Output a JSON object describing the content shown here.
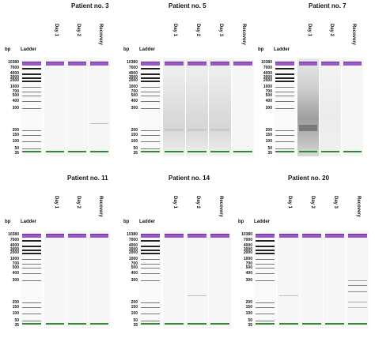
{
  "axis_label": "bp",
  "ladder_label": "Ladder",
  "ladder_sizes": [
    "10380",
    "7000",
    "4000",
    "3000",
    "2000",
    "1000",
    "700",
    "500",
    "400",
    "300",
    "200",
    "150",
    "100",
    "50",
    "35"
  ],
  "colors": {
    "upper_marker": "#9a59c9",
    "lower_marker": "#2e8b2e",
    "ladder_band": "#333333"
  },
  "panels": [
    {
      "title": "Patient no. 3",
      "lanes": [
        "Day 1",
        "Day 2",
        "Recovery"
      ],
      "patterns": [
        "clean",
        "clean",
        "faint"
      ]
    },
    {
      "title": "Patient no. 5",
      "lanes": [
        "Day 1",
        "Day 2",
        "Day 3",
        "Recovery"
      ],
      "patterns": [
        "smear",
        "smear",
        "smear",
        "clean"
      ]
    },
    {
      "title": "Patient no. 7",
      "lanes": [
        "Day 1",
        "Day 2",
        "Recovery"
      ],
      "patterns": [
        "heavy",
        "light",
        "clean"
      ]
    },
    {
      "title": "Patient no. 11",
      "lanes": [
        "Day 1",
        "Day 2",
        "Recovery"
      ],
      "patterns": [
        "clean",
        "clean",
        "clean"
      ]
    },
    {
      "title": "Patient no. 14",
      "lanes": [
        "Day 1",
        "Day 2",
        "Recovery"
      ],
      "patterns": [
        "clean",
        "faint",
        "clean"
      ]
    },
    {
      "title": "Patient no. 20",
      "lanes": [
        "Day 1",
        "Day 2",
        "Day 3",
        "Recovery"
      ],
      "patterns": [
        "faint",
        "clean",
        "clean",
        "bands"
      ]
    }
  ]
}
